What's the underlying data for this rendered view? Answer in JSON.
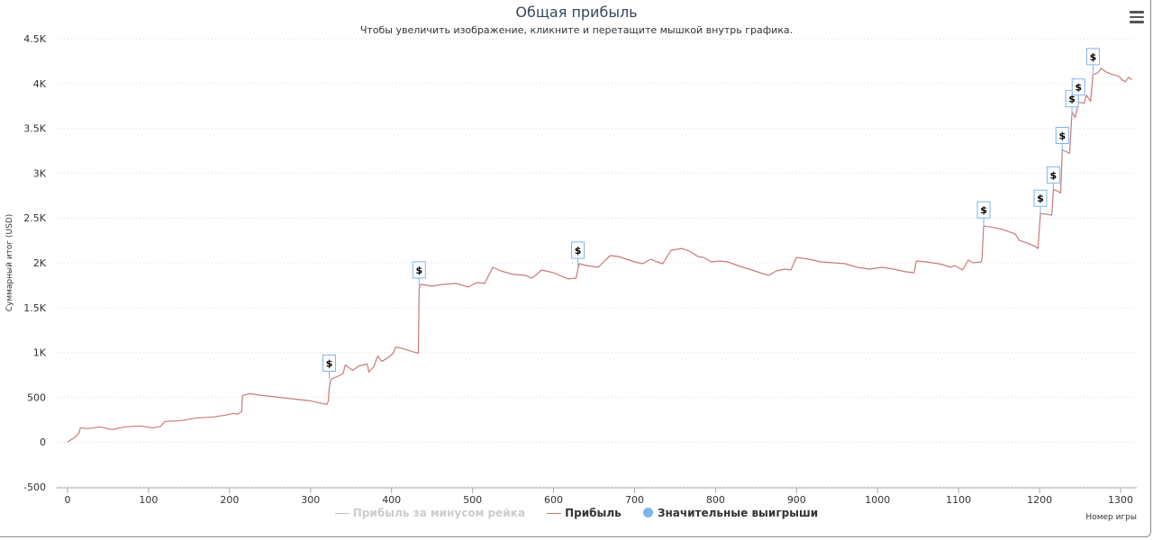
{
  "chart": {
    "title": "Общая прибыль",
    "subtitle": "Чтобы увеличить изображение, кликните и перетащите мышкой внутрь графика.",
    "ylabel": "Суммарный итог (USD)",
    "xlabel": "Номер игры",
    "legend": {
      "rake": "Прибыль за минусом рейка",
      "profit": "Прибыль",
      "big_wins": "Значительные выигрыши"
    }
  },
  "chart_data": {
    "type": "line",
    "xlim": [
      0,
      1320
    ],
    "ylim": [
      -500,
      4500
    ],
    "x_ticks": [
      0,
      100,
      200,
      300,
      400,
      500,
      600,
      700,
      800,
      900,
      1000,
      1100,
      1200,
      1300
    ],
    "y_ticks": [
      -500,
      0,
      500,
      1000,
      1500,
      2000,
      2500,
      3000,
      3500,
      4000,
      4500
    ],
    "y_tick_labels": [
      "-500",
      "0",
      "500",
      "1K",
      "1.5K",
      "2K",
      "2.5K",
      "3K",
      "3.5K",
      "4K",
      "4.5K"
    ],
    "grid": "horizontal-dotted",
    "legend_position": "bottom-center",
    "series": [
      {
        "name": "Прибыль за минусом рейка",
        "color": "#c0c0c0",
        "visible": false,
        "points": []
      },
      {
        "name": "Прибыль",
        "color": "#c87a7a",
        "visible": true,
        "points": [
          [
            0,
            0
          ],
          [
            5,
            30
          ],
          [
            10,
            60
          ],
          [
            14,
            100
          ],
          [
            16,
            160
          ],
          [
            25,
            150
          ],
          [
            40,
            170
          ],
          [
            55,
            140
          ],
          [
            70,
            170
          ],
          [
            90,
            180
          ],
          [
            105,
            160
          ],
          [
            115,
            175
          ],
          [
            120,
            230
          ],
          [
            140,
            240
          ],
          [
            160,
            270
          ],
          [
            180,
            280
          ],
          [
            195,
            300
          ],
          [
            205,
            320
          ],
          [
            210,
            310
          ],
          [
            215,
            340
          ],
          [
            216,
            520
          ],
          [
            225,
            540
          ],
          [
            240,
            520
          ],
          [
            260,
            500
          ],
          [
            280,
            480
          ],
          [
            300,
            460
          ],
          [
            310,
            440
          ],
          [
            320,
            420
          ],
          [
            322,
            460
          ],
          [
            323,
            600
          ],
          [
            325,
            700
          ],
          [
            330,
            720
          ],
          [
            340,
            760
          ],
          [
            343,
            860
          ],
          [
            352,
            800
          ],
          [
            360,
            850
          ],
          [
            370,
            870
          ],
          [
            372,
            780
          ],
          [
            378,
            840
          ],
          [
            383,
            960
          ],
          [
            388,
            900
          ],
          [
            395,
            940
          ],
          [
            402,
            990
          ],
          [
            405,
            1060
          ],
          [
            415,
            1040
          ],
          [
            425,
            1010
          ],
          [
            433,
            990
          ],
          [
            434,
            1710
          ],
          [
            436,
            1760
          ],
          [
            450,
            1740
          ],
          [
            465,
            1760
          ],
          [
            480,
            1770
          ],
          [
            495,
            1730
          ],
          [
            505,
            1780
          ],
          [
            515,
            1770
          ],
          [
            525,
            1950
          ],
          [
            535,
            1910
          ],
          [
            550,
            1870
          ],
          [
            565,
            1860
          ],
          [
            573,
            1830
          ],
          [
            578,
            1860
          ],
          [
            585,
            1920
          ],
          [
            600,
            1890
          ],
          [
            610,
            1850
          ],
          [
            618,
            1820
          ],
          [
            628,
            1830
          ],
          [
            630,
            1930
          ],
          [
            632,
            1990
          ],
          [
            640,
            1970
          ],
          [
            655,
            1950
          ],
          [
            664,
            2030
          ],
          [
            670,
            2080
          ],
          [
            680,
            2070
          ],
          [
            700,
            2010
          ],
          [
            710,
            1990
          ],
          [
            720,
            2040
          ],
          [
            728,
            2010
          ],
          [
            735,
            1990
          ],
          [
            745,
            2140
          ],
          [
            758,
            2160
          ],
          [
            768,
            2130
          ],
          [
            778,
            2070
          ],
          [
            785,
            2060
          ],
          [
            795,
            2010
          ],
          [
            805,
            2020
          ],
          [
            815,
            2010
          ],
          [
            830,
            1960
          ],
          [
            845,
            1920
          ],
          [
            858,
            1880
          ],
          [
            866,
            1860
          ],
          [
            875,
            1910
          ],
          [
            885,
            1930
          ],
          [
            893,
            1920
          ],
          [
            900,
            2060
          ],
          [
            915,
            2040
          ],
          [
            930,
            2010
          ],
          [
            945,
            2000
          ],
          [
            960,
            1990
          ],
          [
            975,
            1950
          ],
          [
            990,
            1930
          ],
          [
            1005,
            1950
          ],
          [
            1020,
            1930
          ],
          [
            1035,
            1900
          ],
          [
            1045,
            1890
          ],
          [
            1048,
            2020
          ],
          [
            1060,
            2010
          ],
          [
            1075,
            1990
          ],
          [
            1080,
            1980
          ],
          [
            1090,
            1950
          ],
          [
            1095,
            1970
          ],
          [
            1105,
            1920
          ],
          [
            1108,
            1970
          ],
          [
            1112,
            2030
          ],
          [
            1118,
            2000
          ],
          [
            1128,
            2010
          ],
          [
            1129,
            2050
          ],
          [
            1131,
            2410
          ],
          [
            1140,
            2400
          ],
          [
            1155,
            2370
          ],
          [
            1170,
            2320
          ],
          [
            1175,
            2250
          ],
          [
            1185,
            2220
          ],
          [
            1195,
            2180
          ],
          [
            1198,
            2160
          ],
          [
            1201,
            2550
          ],
          [
            1210,
            2540
          ],
          [
            1215,
            2530
          ],
          [
            1217,
            2820
          ],
          [
            1222,
            2800
          ],
          [
            1226,
            2780
          ],
          [
            1228,
            3260
          ],
          [
            1233,
            3240
          ],
          [
            1237,
            3220
          ],
          [
            1240,
            3680
          ],
          [
            1244,
            3620
          ],
          [
            1248,
            3790
          ],
          [
            1255,
            3780
          ],
          [
            1258,
            3870
          ],
          [
            1263,
            3800
          ],
          [
            1266,
            4100
          ],
          [
            1272,
            4120
          ],
          [
            1276,
            4170
          ],
          [
            1282,
            4130
          ],
          [
            1290,
            4100
          ],
          [
            1298,
            4080
          ],
          [
            1302,
            4040
          ],
          [
            1306,
            4020
          ],
          [
            1310,
            4070
          ],
          [
            1314,
            4040
          ]
        ]
      },
      {
        "name": "Значительные выигрыши",
        "color": "#7cb5ec",
        "visible": true,
        "marker_label": "$",
        "points": [
          [
            323,
            700
          ],
          [
            434,
            1740
          ],
          [
            630,
            1960
          ],
          [
            1131,
            2410
          ],
          [
            1201,
            2540
          ],
          [
            1217,
            2800
          ],
          [
            1228,
            3240
          ],
          [
            1240,
            3650
          ],
          [
            1248,
            3780
          ],
          [
            1266,
            4120
          ]
        ]
      }
    ]
  }
}
